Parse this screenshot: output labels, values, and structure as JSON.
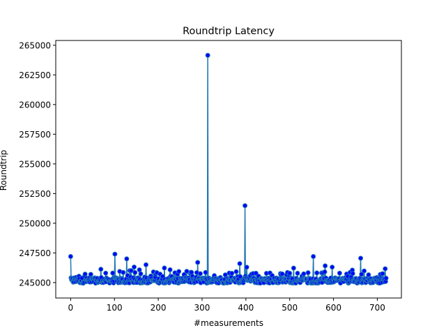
{
  "chart_data": {
    "type": "line",
    "title": "Roundtrip Latency",
    "xlabel": "#measurements",
    "ylabel": "Roundtrip",
    "xlim": [
      -34,
      755
    ],
    "ylim": [
      243700,
      265400
    ],
    "x_ticks": [
      0,
      100,
      200,
      300,
      400,
      500,
      600,
      700
    ],
    "y_ticks": [
      245000,
      247500,
      250000,
      252500,
      255000,
      257500,
      260000,
      262500,
      265000
    ],
    "x_tick_labels": [
      "0",
      "100",
      "200",
      "300",
      "400",
      "500",
      "600",
      "700"
    ],
    "y_tick_labels": [
      "245000",
      "247500",
      "250000",
      "252500",
      "255000",
      "257500",
      "260000",
      "262500",
      "265000"
    ],
    "grid": false,
    "n_points": 721,
    "baseline": 244950,
    "spikes": [
      {
        "x": 0,
        "y": 247200
      },
      {
        "x": 101,
        "y": 247400
      },
      {
        "x": 128,
        "y": 247000
      },
      {
        "x": 172,
        "y": 246500
      },
      {
        "x": 290,
        "y": 246700
      },
      {
        "x": 313,
        "y": 264150
      },
      {
        "x": 386,
        "y": 246600
      },
      {
        "x": 398,
        "y": 251480
      },
      {
        "x": 554,
        "y": 247200
      },
      {
        "x": 597,
        "y": 246300
      },
      {
        "x": 662,
        "y": 247050
      }
    ],
    "line_color": "#1f77b4",
    "marker_face": "#0000ff",
    "marker_edge": "#1f77b4"
  }
}
